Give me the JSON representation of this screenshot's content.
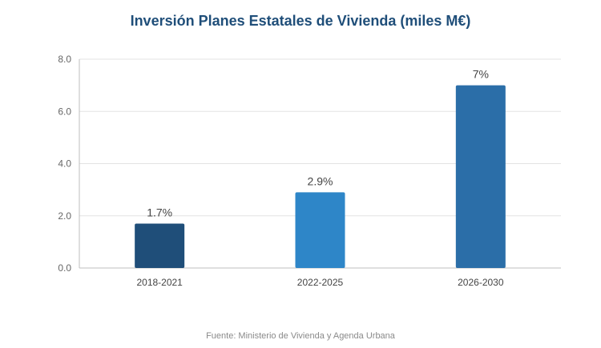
{
  "chart_data": {
    "type": "bar",
    "title": "Inversión Planes Estatales de Vivienda (miles M€)",
    "categories": [
      "2018-2021",
      "2022-2025",
      "2026-2030"
    ],
    "values": [
      1.7,
      2.9,
      7.0
    ],
    "data_labels": [
      "1.7%",
      "2.9%",
      "7%"
    ],
    "colors": [
      "#1f4e79",
      "#2e86c8",
      "#2b6ea8"
    ],
    "ylim": [
      0,
      8
    ],
    "yticks": [
      0,
      2,
      4,
      6,
      8
    ],
    "ytick_labels": [
      "0.0",
      "2.0",
      "4.0",
      "6.0",
      "8.0"
    ],
    "xlabel": "",
    "ylabel": "",
    "grid": true,
    "source": "Fuente: Ministerio de Vivienda y Agenda Urbana"
  }
}
